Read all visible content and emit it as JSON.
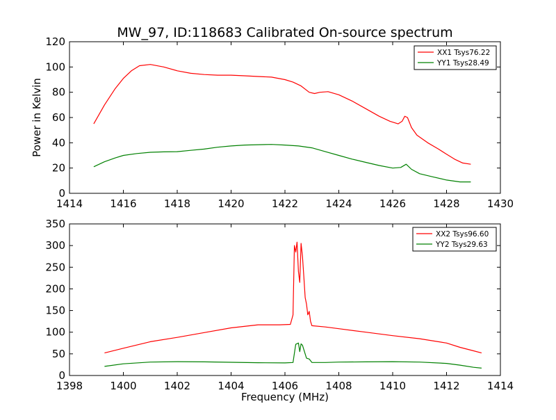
{
  "figure": {
    "title": "MW_97, ID:118683 Calibrated On-source spectrum"
  },
  "chart_data": [
    {
      "type": "line",
      "title": "MW_97, ID:118683 Calibrated On-source spectrum",
      "xlabel": "",
      "ylabel": "Power in Kelvin",
      "xlim": [
        1414,
        1430
      ],
      "ylim": [
        0,
        120
      ],
      "xticks": [
        1414,
        1416,
        1418,
        1420,
        1422,
        1424,
        1426,
        1428,
        1430
      ],
      "yticks": [
        0,
        20,
        40,
        60,
        80,
        100,
        120
      ],
      "grid": false,
      "legend": "top-right",
      "series": [
        {
          "name": "XX1 Tsys76.22",
          "color": "#ff0000",
          "x": [
            1414.9,
            1415.3,
            1415.7,
            1416.0,
            1416.3,
            1416.6,
            1417.0,
            1417.5,
            1418.0,
            1418.5,
            1419.0,
            1419.5,
            1420.0,
            1420.5,
            1421.0,
            1421.5,
            1422.0,
            1422.3,
            1422.6,
            1422.9,
            1423.1,
            1423.3,
            1423.6,
            1424.0,
            1424.5,
            1425.0,
            1425.5,
            1425.9,
            1426.2,
            1426.35,
            1426.45,
            1426.55,
            1426.7,
            1426.9,
            1427.3,
            1427.7,
            1428.0,
            1428.3,
            1428.6,
            1428.9
          ],
          "y": [
            55,
            70,
            83,
            91,
            97,
            101,
            102,
            100,
            97,
            95,
            94,
            93.5,
            93.5,
            93,
            92.5,
            92,
            90,
            88,
            85,
            80,
            79,
            80,
            80.5,
            78,
            73,
            67,
            61,
            57,
            55,
            57,
            61,
            60,
            52,
            46,
            40,
            35,
            31,
            27,
            24,
            23
          ]
        },
        {
          "name": "YY1 Tsys28.49",
          "color": "#008000",
          "x": [
            1414.9,
            1415.3,
            1415.7,
            1416.0,
            1416.5,
            1417.0,
            1417.5,
            1418.0,
            1418.5,
            1419.0,
            1419.5,
            1420.0,
            1420.5,
            1421.0,
            1421.5,
            1422.0,
            1422.5,
            1423.0,
            1423.5,
            1424.0,
            1424.5,
            1425.0,
            1425.5,
            1426.0,
            1426.3,
            1426.5,
            1426.7,
            1427.0,
            1427.5,
            1428.0,
            1428.5,
            1428.9
          ],
          "y": [
            21,
            25,
            28,
            30,
            31.5,
            32.5,
            32.8,
            33,
            34,
            35,
            36.5,
            37.5,
            38.2,
            38.5,
            38.7,
            38.2,
            37.5,
            36,
            33,
            30,
            27,
            24.5,
            22,
            20,
            20.5,
            23,
            19,
            15.5,
            13,
            10.5,
            9,
            9
          ]
        }
      ]
    },
    {
      "type": "line",
      "title": "",
      "xlabel": "Frequency (MHz)",
      "ylabel": "",
      "xlim": [
        1398,
        1414
      ],
      "ylim": [
        0,
        350
      ],
      "xticks": [
        1398,
        1400,
        1402,
        1404,
        1406,
        1408,
        1410,
        1412,
        1414
      ],
      "yticks": [
        0,
        50,
        100,
        150,
        200,
        250,
        300,
        350
      ],
      "grid": false,
      "legend": "top-right",
      "series": [
        {
          "name": "XX2 Tsys96.60",
          "color": "#ff0000",
          "x": [
            1399.3,
            1400.0,
            1401.0,
            1402.0,
            1403.0,
            1404.0,
            1405.0,
            1405.8,
            1406.2,
            1406.3,
            1406.35,
            1406.4,
            1406.45,
            1406.5,
            1406.55,
            1406.6,
            1406.65,
            1406.7,
            1406.75,
            1406.8,
            1406.85,
            1406.9,
            1406.95,
            1407.0,
            1407.5,
            1408.0,
            1409.0,
            1410.0,
            1411.0,
            1412.0,
            1412.5,
            1413.0,
            1413.3
          ],
          "y": [
            52,
            63,
            78,
            88,
            99,
            110,
            117,
            117,
            118,
            140,
            300,
            285,
            308,
            240,
            215,
            305,
            275,
            230,
            180,
            165,
            140,
            148,
            125,
            115,
            112,
            108,
            100,
            92,
            85,
            75,
            65,
            57,
            52
          ]
        },
        {
          "name": "YY2 Tsys29.63",
          "color": "#008000",
          "x": [
            1399.3,
            1400.0,
            1401.0,
            1402.0,
            1403.0,
            1404.0,
            1405.0,
            1406.0,
            1406.3,
            1406.4,
            1406.5,
            1406.55,
            1406.6,
            1406.65,
            1406.7,
            1406.8,
            1406.9,
            1407.0,
            1407.5,
            1408.0,
            1409.0,
            1410.0,
            1411.0,
            1412.0,
            1412.5,
            1413.0,
            1413.3
          ],
          "y": [
            21,
            27,
            31,
            32,
            31.5,
            30.5,
            29.5,
            29,
            30,
            72,
            75,
            55,
            73,
            70,
            60,
            40,
            38,
            30,
            30,
            31,
            31.5,
            32,
            31,
            28,
            24,
            19,
            17
          ]
        }
      ]
    }
  ]
}
